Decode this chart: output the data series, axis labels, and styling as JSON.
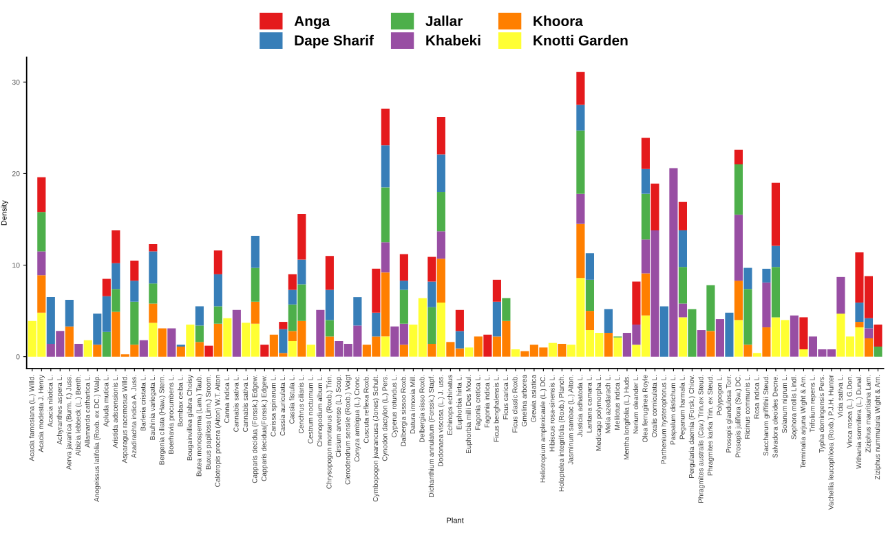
{
  "chart_data": {
    "type": "bar",
    "stacked": true,
    "xlabel": "Plant",
    "ylabel": "Density",
    "categories": [
      "Acacia famosiana (L.) Willd.",
      "Acacia modesta J. Henry",
      "Acacia nilotica L.",
      "Achyranthes aspera L.",
      "Aerva javanica (Burm. f.) Juss.",
      "Albizia lebbeck (L.) Benth.",
      "Allamanda cathartica L.",
      "Anogeissus latifolia (Roxb. ex DC.) Walp.",
      "Apluda mutica L.",
      "Aristida adscensionis L.",
      "Asparagus racemosus Willd.",
      "Azadirachta indica A. Juss.",
      "Barleria cristata L.",
      "Bauhinia variegata L.",
      "Bergenia ciliata (Haw.) Stern.",
      "Boerhavia procumbens L.",
      "Bombax ceiba L.",
      "Bougainvillea glabra Choisy",
      "Butea monosperma (Lam.) Taub.",
      "Buxus papillosa (Linn.) Sroom.",
      "Calotropis procera (Aiton) W.T. Aiton",
      "Canna indica L.",
      "Cannabis sativa L.",
      "Cannabis sativa L.",
      "Capparis decidua (Forssk.) Edgew.",
      "Capparis decidua(Forssk.) Edgew.",
      "Carissa spinarum L.",
      "Cassia auriculata L.",
      "Cassia fistula L.",
      "Cenchrus ciliaris L.",
      "Cestrum nocturnum L.",
      "Chenopodium album L.",
      "Chrysopogon montanus (Roxb.) Trin.",
      "Cirsium arvense (L.) Scop.",
      "Clerodendrum sensile (Roxb.) Voigt",
      "Conyza ambigua (L.) Cronc.",
      "Cuscuta reflexa Roxb.",
      "Cymbopogon jwarancusa (Jones) Schult.",
      "Cynodon dactylon (L.) Pers.",
      "Cyperus rotundus L.",
      "Dalbergia sissoo Roxb.",
      "Datura innoxia Mill.",
      "Delbergia sisso Roxb.",
      "Dichanthium annulatum (Forssk.) Stapf.",
      "Dodonaea viscosa (L.) J. uss.",
      "Echinops echinatus",
      "Euphorbia hirta L.",
      "Euphorbia milli Des Moul.",
      "Fagonia cretica L.",
      "Fagonia indica L.",
      "Ficus benghalensis L.",
      "Ficus carica L.",
      "Ficus clastic Roxb.",
      "Gmelina arborea",
      "Grewia asiatica",
      "Heliotropium amplexicaule (L.) DC.",
      "Hibiscus rosa-sinensis L.",
      "Holoptelea integrifolia (Roxb.) Planch.",
      "Jasminum sambac (L.) Aiton.",
      "Justicia adhatoda L.",
      "Lantana camara L.",
      "Medicago polymorpha L.",
      "Melia azedarach L.",
      "Melilotus indica L.",
      "Mentha longifolia (L.) Huds.",
      "Nerium oleander L.",
      "Olea ferruginea Royle",
      "Oxalis corniculata L.",
      "Parthenium hysterophorus L.",
      "Paspalum distichum L.",
      "Peganum harmala L.",
      "Pergularia daemia (Forsk.) Chiov.",
      "Phragmites australis (Cav.) Trin.ex Steud.",
      "Phragmites karka Trin. ex Steud.",
      "Polypogon L.",
      "Prosopis glandulosa Torr.",
      "Prosopis juliflora (Sw.) DC.",
      "Ricinus communis L.",
      "Rosa indica L.",
      "Saccharum griffithii Steud.",
      "Salvadora oleoides Decne.",
      "Solanum nigrum L.",
      "Sophora mollis Lindl.",
      "Terminalia arjuna Wight & Arn.",
      "Trifolium repens L.",
      "Typha domingensis Pers.",
      "Vachellia leucophloea (Roxb.) P.J.H. Hunter",
      "Vicia sativa L.",
      "Vinca rosea (L.) G.Don.",
      "Withania somnifera (L.) Dunal.",
      "Ziziphus mauritiana Lam.",
      "Ziziphus nummularia Wight & Arn."
    ],
    "series": [
      {
        "name": "Knotti Garden",
        "color": "#ffff33",
        "values": [
          3.9,
          4.8,
          null,
          null,
          null,
          null,
          1.8,
          null,
          null,
          null,
          null,
          null,
          null,
          3.7,
          null,
          null,
          null,
          3.5,
          null,
          null,
          null,
          4.2,
          null,
          3.7,
          3.6,
          null,
          null,
          null,
          1.7,
          null,
          1.3,
          null,
          null,
          null,
          null,
          null,
          null,
          null,
          2.2,
          null,
          null,
          3.5,
          6.4,
          null,
          5.9,
          null,
          null,
          1.0,
          null,
          null,
          null,
          null,
          0.8,
          null,
          null,
          null,
          1.5,
          null,
          1.3,
          8.6,
          2.9,
          2.6,
          null,
          2.1,
          null,
          1.3,
          4.5,
          null,
          null,
          null,
          4.3,
          null,
          null,
          null,
          null,
          null,
          4.0,
          null,
          0.4,
          null,
          4.3,
          4.0,
          null,
          0.8,
          null,
          null,
          null,
          4.7,
          2.2,
          3.2,
          null,
          null
        ]
      },
      {
        "name": "Khoora",
        "color": "#ff7f00",
        "values": [
          null,
          4.1,
          null,
          null,
          3.3,
          null,
          null,
          1.3,
          null,
          4.9,
          0.25,
          1.3,
          null,
          2.1,
          3.1,
          null,
          1.1,
          null,
          1.6,
          null,
          3.6,
          null,
          null,
          null,
          2.4,
          null,
          2.4,
          0.4,
          1.1,
          3.9,
          null,
          null,
          2.2,
          null,
          null,
          null,
          1.3,
          2.2,
          7.0,
          null,
          1.3,
          null,
          null,
          1.4,
          4.8,
          1.6,
          0.9,
          null,
          2.2,
          null,
          2.2,
          3.9,
          null,
          0.6,
          1.3,
          1.0,
          null,
          1.4,
          null,
          5.9,
          2.1,
          null,
          2.6,
          null,
          null,
          null,
          4.6,
          null,
          null,
          null,
          null,
          null,
          null,
          2.8,
          null,
          null,
          4.3,
          1.3,
          null,
          3.2,
          null,
          null,
          null,
          null,
          null,
          null,
          null,
          null,
          null,
          0.6,
          2.0,
          null
        ]
      },
      {
        "name": "Khabeki",
        "color": "#984ea3",
        "values": [
          null,
          2.6,
          1.4,
          2.8,
          null,
          1.4,
          null,
          null,
          null,
          null,
          null,
          null,
          1.8,
          null,
          null,
          3.1,
          null,
          null,
          null,
          null,
          null,
          null,
          5.1,
          null,
          null,
          null,
          null,
          null,
          null,
          null,
          null,
          5.1,
          null,
          1.7,
          1.4,
          3.4,
          null,
          null,
          3.3,
          3.3,
          2.3,
          null,
          null,
          null,
          3.0,
          null,
          null,
          null,
          null,
          null,
          null,
          null,
          null,
          null,
          null,
          null,
          null,
          null,
          null,
          3.3,
          null,
          null,
          null,
          null,
          2.6,
          2.2,
          3.7,
          13.8,
          null,
          20.6,
          1.5,
          null,
          2.9,
          null,
          4.1,
          null,
          7.2,
          null,
          null,
          4.9,
          null,
          null,
          4.5,
          null,
          2.2,
          0.8,
          0.8,
          4.0,
          null,
          null,
          1.1,
          null
        ]
      },
      {
        "name": "Jallar",
        "color": "#4daf4a",
        "values": [
          null,
          4.3,
          null,
          null,
          null,
          null,
          null,
          null,
          2.7,
          2.5,
          null,
          4.7,
          null,
          2.2,
          null,
          null,
          null,
          null,
          1.8,
          null,
          1.9,
          null,
          null,
          null,
          3.7,
          null,
          null,
          null,
          2.9,
          4.0,
          null,
          null,
          1.8,
          null,
          null,
          null,
          null,
          null,
          6.0,
          null,
          3.7,
          null,
          null,
          4.0,
          4.3,
          null,
          null,
          null,
          null,
          null,
          null,
          2.5,
          null,
          null,
          null,
          null,
          null,
          null,
          null,
          6.9,
          3.4,
          null,
          null,
          0.1,
          null,
          null,
          5.0,
          null,
          null,
          null,
          4.0,
          5.2,
          null,
          5.0,
          null,
          null,
          5.5,
          6.1,
          null,
          null,
          5.5,
          null,
          null,
          null,
          null,
          null,
          null,
          null,
          null,
          null,
          null,
          1.1
        ]
      },
      {
        "name": "Dape Sharif",
        "color": "#377eb8",
        "values": [
          null,
          null,
          5.1,
          null,
          2.9,
          null,
          null,
          3.4,
          3.9,
          2.8,
          null,
          2.3,
          null,
          3.5,
          null,
          null,
          0.2,
          null,
          2.1,
          null,
          3.5,
          null,
          null,
          null,
          3.5,
          null,
          null,
          2.6,
          1.6,
          2.7,
          null,
          null,
          3.3,
          null,
          null,
          3.1,
          null,
          2.6,
          4.6,
          null,
          1.0,
          null,
          null,
          2.8,
          4.1,
          null,
          1.9,
          null,
          null,
          null,
          3.8,
          null,
          null,
          null,
          null,
          null,
          null,
          null,
          null,
          2.8,
          2.9,
          null,
          2.6,
          null,
          null,
          null,
          2.7,
          null,
          5.5,
          null,
          4.0,
          null,
          null,
          null,
          null,
          4.8,
          null,
          2.3,
          null,
          1.5,
          2.3,
          null,
          null,
          null,
          null,
          null,
          null,
          null,
          null,
          2.1,
          1.1,
          null
        ]
      },
      {
        "name": "Anga",
        "color": "#e41a1c",
        "values": [
          null,
          3.8,
          null,
          null,
          null,
          null,
          null,
          null,
          1.9,
          3.6,
          null,
          2.2,
          null,
          0.8,
          null,
          null,
          null,
          null,
          null,
          1.2,
          2.6,
          null,
          null,
          null,
          null,
          1.3,
          null,
          0.8,
          1.7,
          5.0,
          null,
          null,
          3.7,
          null,
          null,
          null,
          null,
          4.8,
          4.0,
          null,
          2.9,
          null,
          null,
          2.7,
          4.1,
          null,
          2.3,
          null,
          null,
          2.4,
          2.4,
          null,
          null,
          null,
          null,
          null,
          null,
          null,
          null,
          3.6,
          null,
          null,
          null,
          null,
          null,
          4.7,
          3.4,
          5.1,
          null,
          null,
          3.1,
          null,
          null,
          null,
          null,
          null,
          1.6,
          null,
          null,
          null,
          6.9,
          null,
          null,
          3.5,
          null,
          null,
          null,
          null,
          null,
          5.5,
          4.6,
          2.4
        ]
      }
    ],
    "ylim": [
      -1.3,
      32.7
    ],
    "yticks": [
      0,
      10,
      20,
      30
    ],
    "grid": false,
    "legend": "top"
  }
}
